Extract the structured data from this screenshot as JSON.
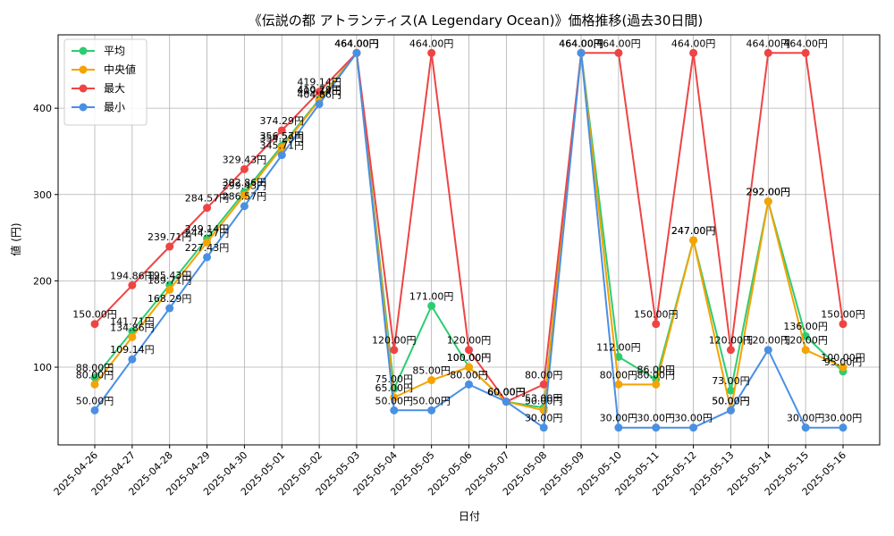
{
  "chart_data": {
    "type": "line",
    "title": "《伝説の都 アトランティス(A Legendary Ocean)》価格推移(過去30日間)",
    "xlabel": "日付",
    "ylabel": "値 (円)",
    "ylim": [
      10,
      485
    ],
    "yticks": [
      100,
      200,
      300,
      400
    ],
    "grid": true,
    "legend_position": "top-left",
    "label_suffix": "円",
    "categories": [
      "2025-04-26",
      "2025-04-27",
      "2025-04-28",
      "2025-04-29",
      "2025-04-30",
      "2025-05-01",
      "2025-05-02",
      "2025-05-03",
      "2025-05-04",
      "2025-05-05",
      "2025-05-06",
      "2025-05-07",
      "2025-05-08",
      "2025-05-09",
      "2025-05-10",
      "2025-05-11",
      "2025-05-12",
      "2025-05-13",
      "2025-05-14",
      "2025-05-15",
      "2025-05-16"
    ],
    "series": [
      {
        "name": "平均",
        "color": "#2ecc71",
        "values": [
          88.0,
          141.71,
          195.43,
          249.14,
          302.86,
          356.57,
          410.29,
          464.0,
          75.0,
          171.0,
          100.0,
          60.0,
          53.0,
          464.0,
          112.0,
          86.0,
          247.0,
          73.0,
          292.0,
          136.0,
          95.0
        ]
      },
      {
        "name": "中央値",
        "color": "#f5a300",
        "values": [
          80.0,
          134.86,
          189.71,
          244.57,
          299.43,
          354.29,
          409.14,
          464.0,
          65.0,
          85.0,
          100.0,
          60.0,
          50.0,
          464.0,
          80.0,
          80.0,
          247.0,
          50.0,
          292.0,
          120.0,
          100.0
        ]
      },
      {
        "name": "最大",
        "color": "#ef4444",
        "values": [
          150.0,
          194.86,
          239.71,
          284.57,
          329.43,
          374.29,
          419.14,
          464.0,
          120.0,
          464.0,
          120.0,
          60.0,
          80.0,
          464.0,
          464.0,
          150.0,
          464.0,
          120.0,
          464.0,
          464.0,
          150.0
        ]
      },
      {
        "name": "最小",
        "color": "#4a90e2",
        "values": [
          50.0,
          109.14,
          168.29,
          227.43,
          286.57,
          345.71,
          404.86,
          464.0,
          50.0,
          50.0,
          80.0,
          60.0,
          30.0,
          464.0,
          30.0,
          30.0,
          30.0,
          50.0,
          120.0,
          30.0,
          30.0
        ]
      }
    ]
  }
}
